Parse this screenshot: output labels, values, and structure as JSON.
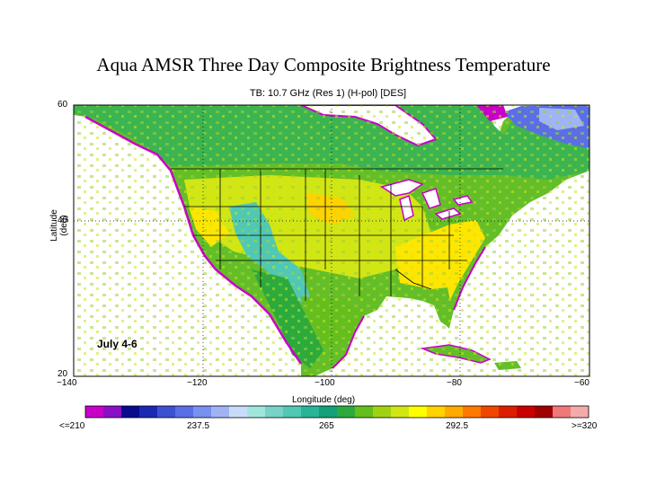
{
  "title": "Aqua AMSR Three Day Composite Brightness Temperature",
  "subtitle": "TB: 10.7 GHz (Res 1) (H-pol) [DES]",
  "map": {
    "date_label": "July 4-6",
    "ylabel": "Latitude (deg)",
    "xlabel": "Longitude (deg)",
    "lon_ticks": [
      "−140",
      "−120",
      "−100",
      "−80",
      "−60"
    ],
    "lat_ticks": [
      "60",
      "40",
      "20"
    ]
  },
  "colorbar": {
    "labels": [
      "<=210",
      "237.5",
      "265",
      "292.5",
      ">=320"
    ],
    "colors": [
      "#c800c8",
      "#8a10c8",
      "#0a0a8c",
      "#1a28b4",
      "#3c50d2",
      "#5a6ee6",
      "#7890f0",
      "#a0b4f5",
      "#c8dcfa",
      "#a0e6dc",
      "#78d2c8",
      "#50c8b4",
      "#28b496",
      "#14a078",
      "#2daa3c",
      "#64be1e",
      "#a0d214",
      "#d2e614",
      "#ffff00",
      "#ffd200",
      "#ffaa00",
      "#ff7800",
      "#f04600",
      "#dc1e00",
      "#c80000",
      "#a00000",
      "#f07878",
      "#f5aaaa"
    ]
  }
}
